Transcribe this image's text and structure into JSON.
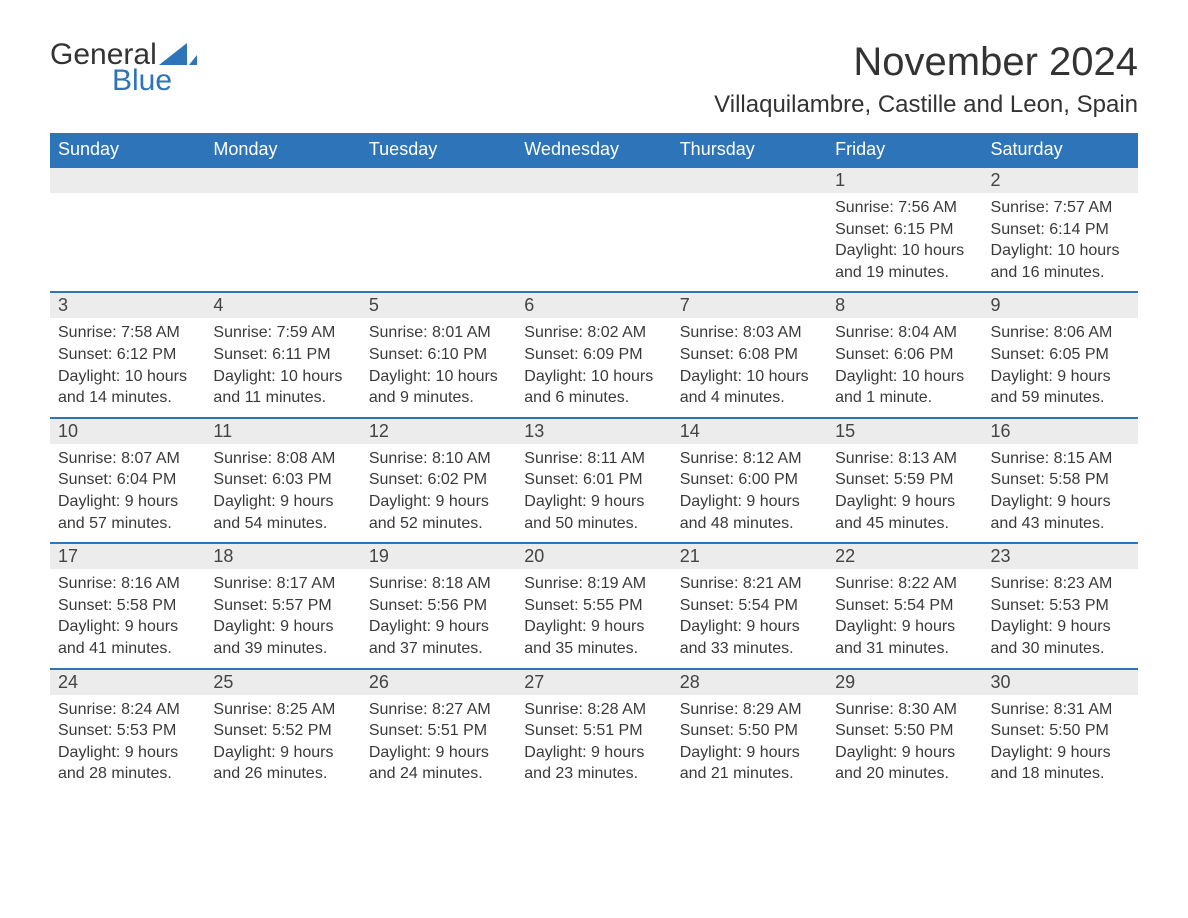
{
  "logo": {
    "word1": "General",
    "word2": "Blue",
    "text_color": "#333333",
    "accent_color": "#2d74b8"
  },
  "header": {
    "month_title": "November 2024",
    "location": "Villaquilambre, Castille and Leon, Spain"
  },
  "styling": {
    "header_bg": "#2d74b8",
    "header_text": "#ffffff",
    "daynum_bg": "#ececec",
    "daynum_border": "#2d74b8",
    "body_text": "#3a3a3a",
    "page_bg": "#ffffff",
    "font_family": "Arial",
    "th_fontsize": 18,
    "daynum_fontsize": 18,
    "body_fontsize": 16,
    "title_fontsize": 40,
    "location_fontsize": 24
  },
  "weekdays": [
    "Sunday",
    "Monday",
    "Tuesday",
    "Wednesday",
    "Thursday",
    "Friday",
    "Saturday"
  ],
  "first_day_column": 5,
  "days": [
    {
      "n": 1,
      "sunrise": "7:56 AM",
      "sunset": "6:15 PM",
      "daylight": "10 hours and 19 minutes."
    },
    {
      "n": 2,
      "sunrise": "7:57 AM",
      "sunset": "6:14 PM",
      "daylight": "10 hours and 16 minutes."
    },
    {
      "n": 3,
      "sunrise": "7:58 AM",
      "sunset": "6:12 PM",
      "daylight": "10 hours and 14 minutes."
    },
    {
      "n": 4,
      "sunrise": "7:59 AM",
      "sunset": "6:11 PM",
      "daylight": "10 hours and 11 minutes."
    },
    {
      "n": 5,
      "sunrise": "8:01 AM",
      "sunset": "6:10 PM",
      "daylight": "10 hours and 9 minutes."
    },
    {
      "n": 6,
      "sunrise": "8:02 AM",
      "sunset": "6:09 PM",
      "daylight": "10 hours and 6 minutes."
    },
    {
      "n": 7,
      "sunrise": "8:03 AM",
      "sunset": "6:08 PM",
      "daylight": "10 hours and 4 minutes."
    },
    {
      "n": 8,
      "sunrise": "8:04 AM",
      "sunset": "6:06 PM",
      "daylight": "10 hours and 1 minute."
    },
    {
      "n": 9,
      "sunrise": "8:06 AM",
      "sunset": "6:05 PM",
      "daylight": "9 hours and 59 minutes."
    },
    {
      "n": 10,
      "sunrise": "8:07 AM",
      "sunset": "6:04 PM",
      "daylight": "9 hours and 57 minutes."
    },
    {
      "n": 11,
      "sunrise": "8:08 AM",
      "sunset": "6:03 PM",
      "daylight": "9 hours and 54 minutes."
    },
    {
      "n": 12,
      "sunrise": "8:10 AM",
      "sunset": "6:02 PM",
      "daylight": "9 hours and 52 minutes."
    },
    {
      "n": 13,
      "sunrise": "8:11 AM",
      "sunset": "6:01 PM",
      "daylight": "9 hours and 50 minutes."
    },
    {
      "n": 14,
      "sunrise": "8:12 AM",
      "sunset": "6:00 PM",
      "daylight": "9 hours and 48 minutes."
    },
    {
      "n": 15,
      "sunrise": "8:13 AM",
      "sunset": "5:59 PM",
      "daylight": "9 hours and 45 minutes."
    },
    {
      "n": 16,
      "sunrise": "8:15 AM",
      "sunset": "5:58 PM",
      "daylight": "9 hours and 43 minutes."
    },
    {
      "n": 17,
      "sunrise": "8:16 AM",
      "sunset": "5:58 PM",
      "daylight": "9 hours and 41 minutes."
    },
    {
      "n": 18,
      "sunrise": "8:17 AM",
      "sunset": "5:57 PM",
      "daylight": "9 hours and 39 minutes."
    },
    {
      "n": 19,
      "sunrise": "8:18 AM",
      "sunset": "5:56 PM",
      "daylight": "9 hours and 37 minutes."
    },
    {
      "n": 20,
      "sunrise": "8:19 AM",
      "sunset": "5:55 PM",
      "daylight": "9 hours and 35 minutes."
    },
    {
      "n": 21,
      "sunrise": "8:21 AM",
      "sunset": "5:54 PM",
      "daylight": "9 hours and 33 minutes."
    },
    {
      "n": 22,
      "sunrise": "8:22 AM",
      "sunset": "5:54 PM",
      "daylight": "9 hours and 31 minutes."
    },
    {
      "n": 23,
      "sunrise": "8:23 AM",
      "sunset": "5:53 PM",
      "daylight": "9 hours and 30 minutes."
    },
    {
      "n": 24,
      "sunrise": "8:24 AM",
      "sunset": "5:53 PM",
      "daylight": "9 hours and 28 minutes."
    },
    {
      "n": 25,
      "sunrise": "8:25 AM",
      "sunset": "5:52 PM",
      "daylight": "9 hours and 26 minutes."
    },
    {
      "n": 26,
      "sunrise": "8:27 AM",
      "sunset": "5:51 PM",
      "daylight": "9 hours and 24 minutes."
    },
    {
      "n": 27,
      "sunrise": "8:28 AM",
      "sunset": "5:51 PM",
      "daylight": "9 hours and 23 minutes."
    },
    {
      "n": 28,
      "sunrise": "8:29 AM",
      "sunset": "5:50 PM",
      "daylight": "9 hours and 21 minutes."
    },
    {
      "n": 29,
      "sunrise": "8:30 AM",
      "sunset": "5:50 PM",
      "daylight": "9 hours and 20 minutes."
    },
    {
      "n": 30,
      "sunrise": "8:31 AM",
      "sunset": "5:50 PM",
      "daylight": "9 hours and 18 minutes."
    }
  ],
  "labels": {
    "sunrise": "Sunrise: ",
    "sunset": "Sunset: ",
    "daylight": "Daylight: "
  }
}
